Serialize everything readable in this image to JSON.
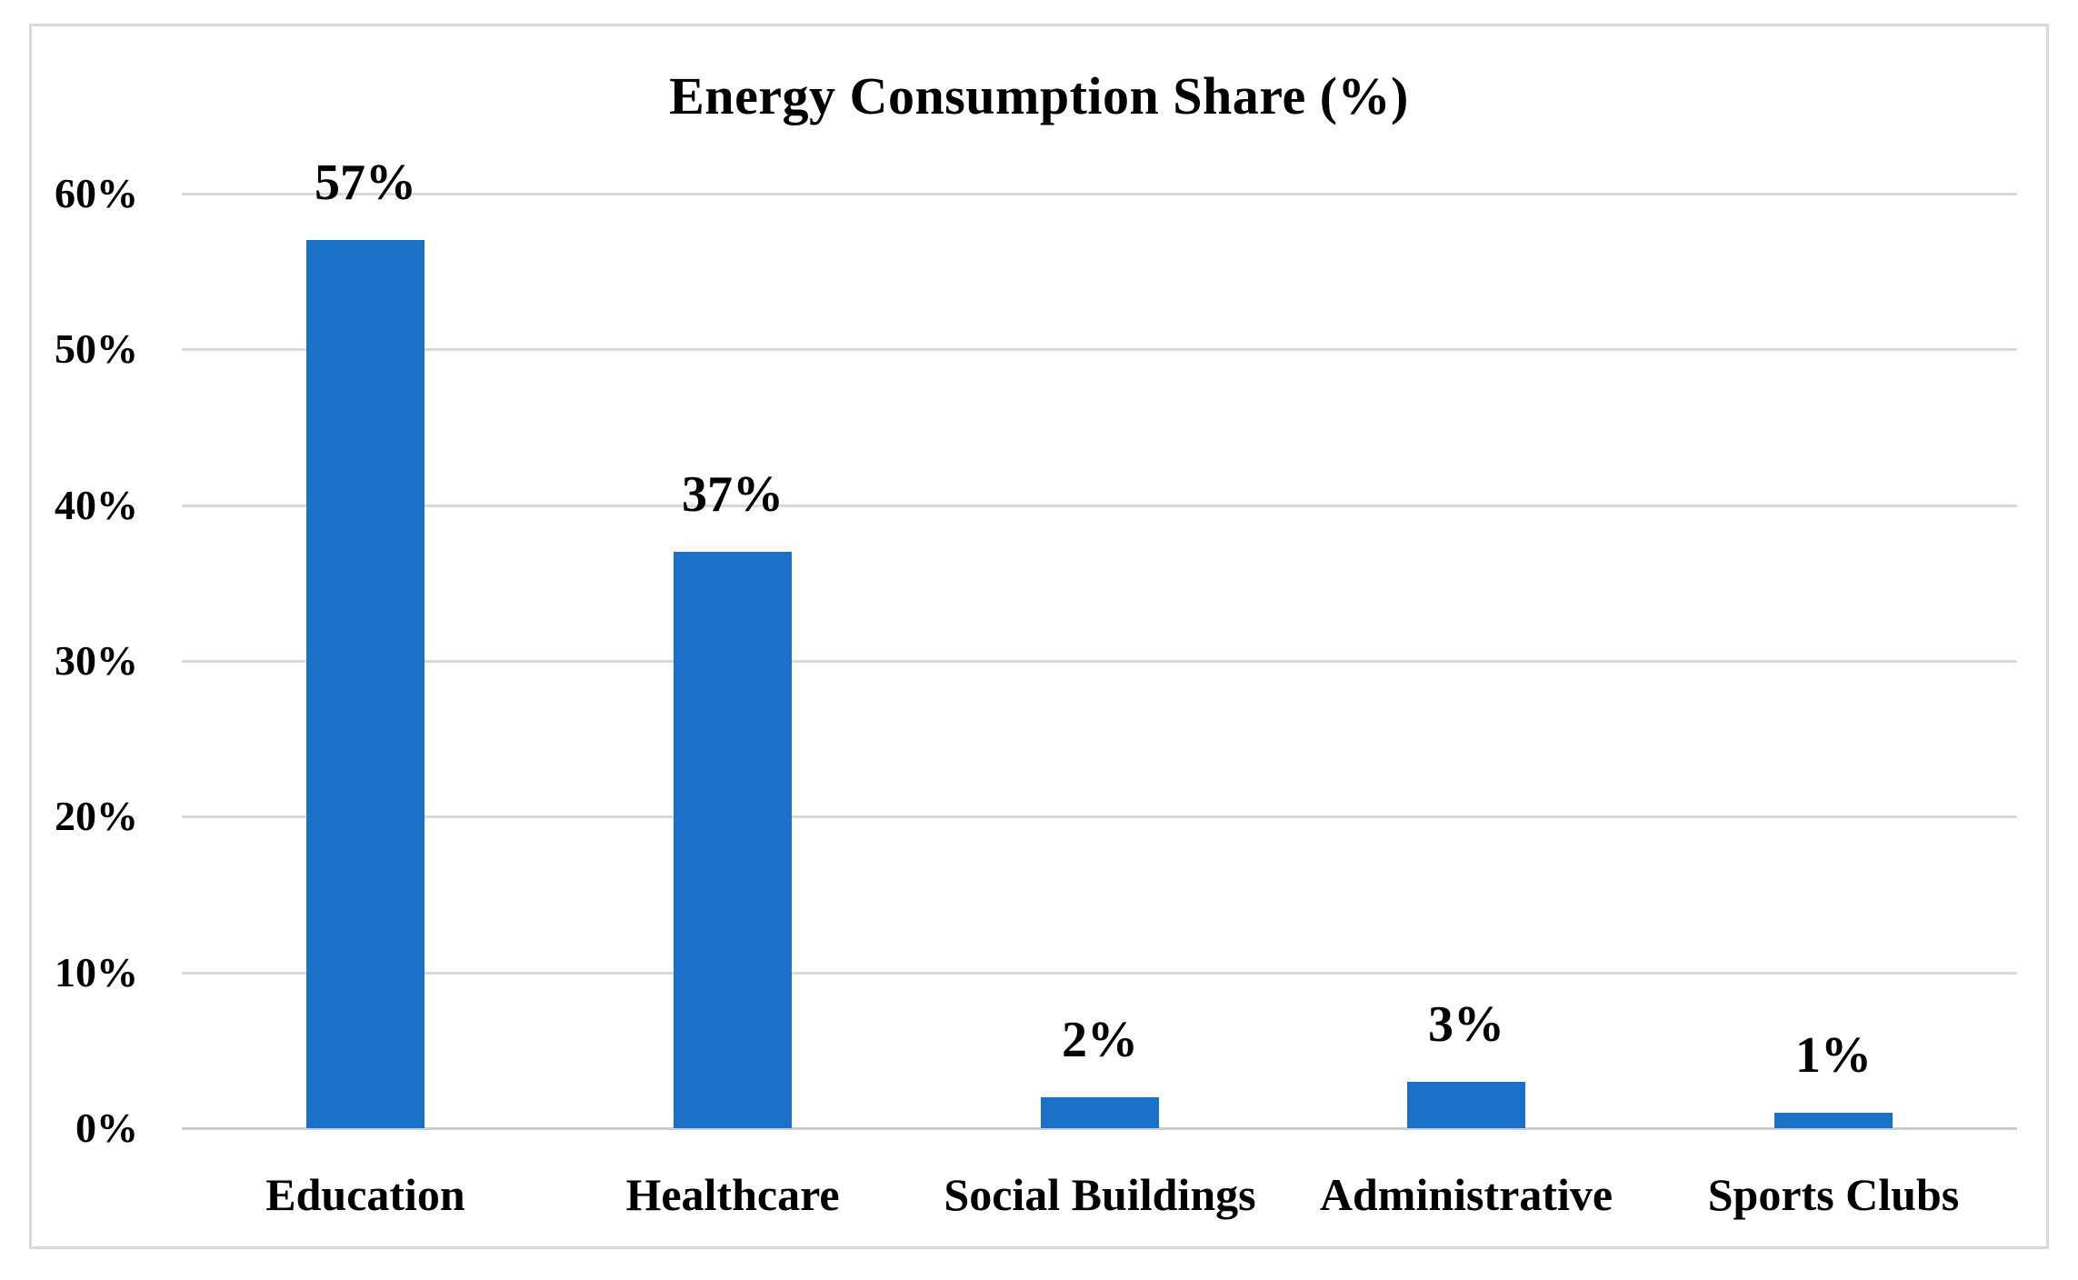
{
  "chart_data": {
    "type": "bar",
    "title": "Energy Consumption Share (%)",
    "categories": [
      "Education",
      "Healthcare",
      "Social Buildings",
      "Administrative",
      "Sports Clubs"
    ],
    "values": [
      57,
      37,
      2,
      3,
      1
    ],
    "data_labels": [
      "57%",
      "37%",
      "2%",
      "3%",
      "1%"
    ],
    "xlabel": "",
    "ylabel": "",
    "ylim": [
      0,
      60
    ],
    "y_tick_step": 10,
    "y_tick_labels": [
      "60%",
      "50%",
      "40%",
      "30%",
      "20%",
      "10%",
      "0%"
    ],
    "grid": true,
    "legend": "none",
    "colors": {
      "bar": "#1b71c8",
      "gridline": "#d9d9d9",
      "axis_line": "#cccccc",
      "frame_border": "#d9d9d9",
      "text": "#000000",
      "background": "#ffffff"
    }
  }
}
